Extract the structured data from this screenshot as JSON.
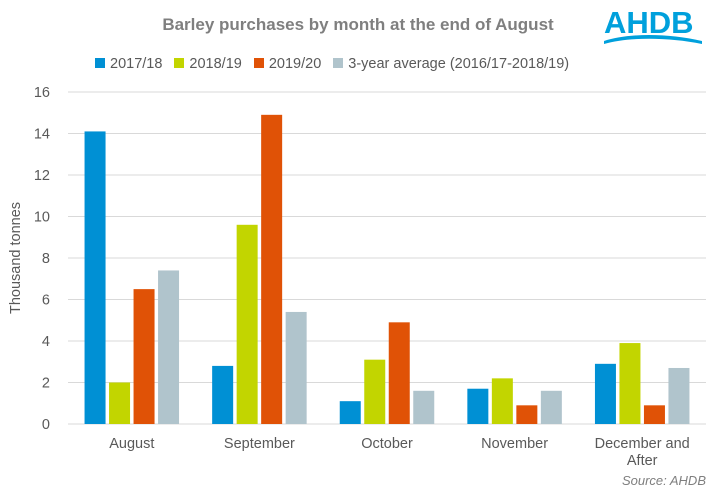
{
  "title": "Barley purchases by month at the end of August",
  "logo_text": "AHDB",
  "source": "Source: AHDB",
  "colors": {
    "series": [
      "#0090d4",
      "#c2d500",
      "#e05206",
      "#b0c4cc"
    ],
    "brand": "#00a0dc",
    "grid": "#d9d9d9",
    "text": "#595959"
  },
  "chart_data": {
    "type": "bar",
    "title": "Barley purchases by month at the end of August",
    "ylabel": "Thousand tonnes",
    "xlabel": "",
    "ylim": [
      0,
      16
    ],
    "yticks": [
      0,
      2,
      4,
      6,
      8,
      10,
      12,
      14,
      16
    ],
    "grid": true,
    "legend_position": "top",
    "categories": [
      "August",
      "September",
      "October",
      "November",
      "December and After"
    ],
    "category_lines": [
      [
        "August"
      ],
      [
        "September"
      ],
      [
        "October"
      ],
      [
        "November"
      ],
      [
        "December and",
        "After"
      ]
    ],
    "series": [
      {
        "name": "2017/18",
        "values": [
          14.1,
          2.8,
          1.1,
          1.7,
          2.9
        ]
      },
      {
        "name": "2018/19",
        "values": [
          2.0,
          9.6,
          3.1,
          2.2,
          3.9
        ]
      },
      {
        "name": "2019/20",
        "values": [
          6.5,
          14.9,
          4.9,
          0.9,
          0.9
        ]
      },
      {
        "name": "3-year average (2016/17-2018/19)",
        "values": [
          7.4,
          5.4,
          1.6,
          1.6,
          2.7
        ]
      }
    ]
  }
}
